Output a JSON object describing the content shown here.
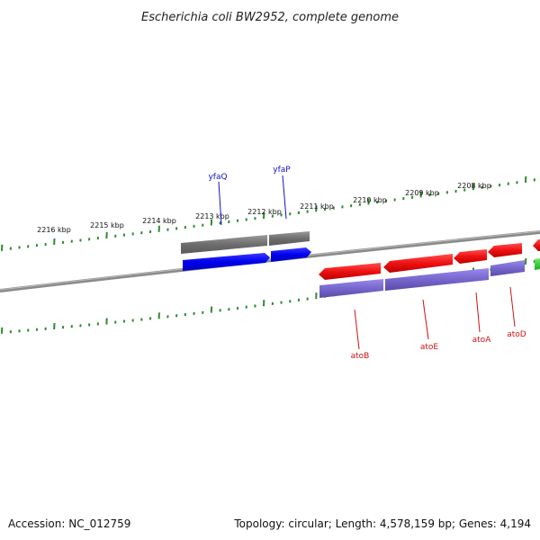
{
  "title": "Escherichia coli BW2952, complete genome",
  "footer": {
    "accession": "Accession: NC_012759",
    "summary": "Topology: circular; Length: 4,578,159 bp; Genes: 4,194"
  },
  "colors": {
    "background": "#ffffff",
    "backbone": "#8a8a8a",
    "tick": "#2e8b2e",
    "cds_blue": "#0000ee",
    "cds_red": "#ee1111",
    "cds_green": "#22cc22",
    "gene_gray": "#6e6e6e",
    "gene_purple": "#7766cc",
    "label_blue": "#1111cc",
    "label_red": "#cc1111"
  },
  "ruler": {
    "tick_labels": [
      "2216 kbp",
      "2215 kbp",
      "2214 kbp",
      "2213 kbp",
      "2212 kbp",
      "2211 kbp",
      "2210 kbp",
      "2209 kbp",
      "2208 kbp"
    ]
  },
  "genes": {
    "forward_strand": [
      {
        "name": "yfaQ",
        "color": "#0000ee",
        "label_color": "#1111cc"
      },
      {
        "name": "yfaP",
        "color": "#0000ee",
        "label_color": "#1111cc"
      }
    ],
    "reverse_strand": [
      {
        "name": "atoB",
        "color": "#ee1111",
        "label_color": "#cc1111"
      },
      {
        "name": "atoE",
        "color": "#ee1111",
        "label_color": "#cc1111"
      },
      {
        "name": "atoA",
        "color": "#ee1111",
        "label_color": "#cc1111"
      },
      {
        "name": "atoD",
        "color": "#ee1111",
        "label_color": "#cc1111"
      }
    ]
  }
}
